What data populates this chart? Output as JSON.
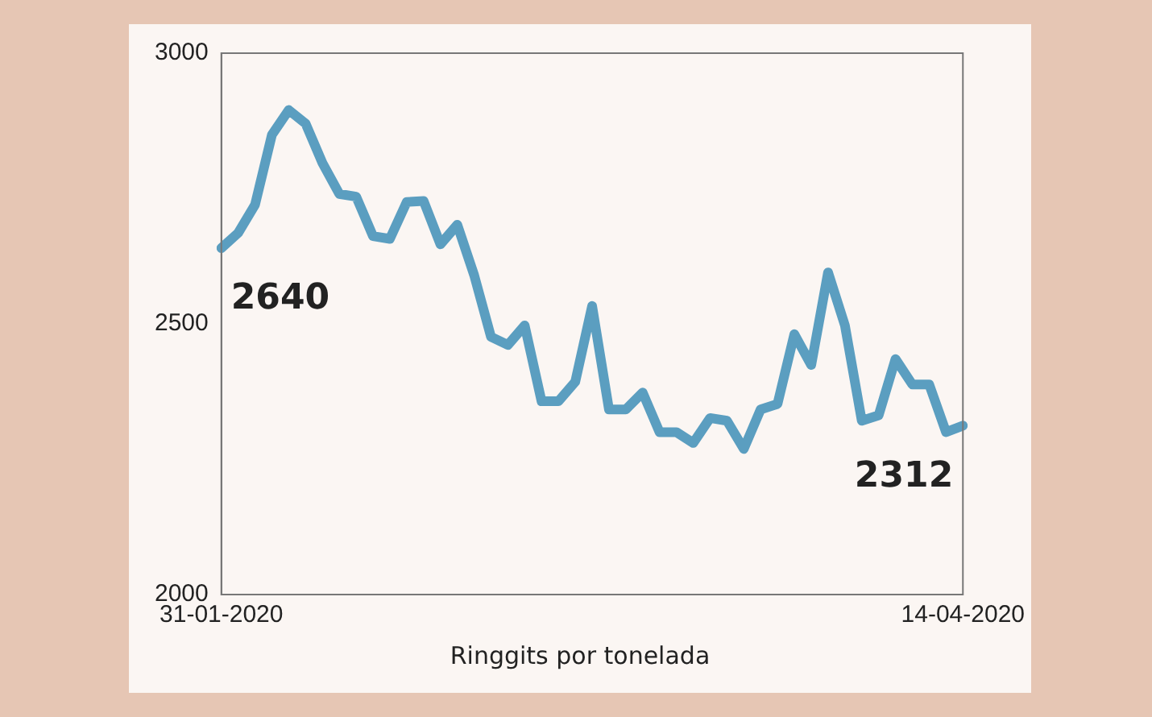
{
  "chart_data": {
    "type": "line",
    "xlabel": "Ringgits por tonelada",
    "categories": [
      "31-01-2020",
      null,
      null,
      null,
      null,
      null,
      null,
      null,
      null,
      null,
      null,
      null,
      null,
      null,
      null,
      null,
      null,
      null,
      null,
      null,
      null,
      null,
      null,
      null,
      null,
      null,
      null,
      null,
      null,
      null,
      null,
      null,
      null,
      null,
      null,
      null,
      null,
      null,
      null,
      null,
      null,
      null,
      null,
      null,
      "14-04-2020"
    ],
    "series": [
      {
        "color": "#5b9ec0",
        "values": [
          2640,
          2668,
          2720,
          2849,
          2895,
          2870,
          2797,
          2740,
          2735,
          2662,
          2657,
          2725,
          2727,
          2647,
          2683,
          2590,
          2476,
          2461,
          2497,
          2357,
          2357,
          2393,
          2533,
          2342,
          2342,
          2373,
          2300,
          2300,
          2280,
          2326,
          2321,
          2269,
          2342,
          2352,
          2481,
          2424,
          2595,
          2497,
          2321,
          2331,
          2435,
          2388,
          2388,
          2300,
          2312
        ]
      }
    ],
    "ylim": [
      2000,
      3000
    ],
    "yticks": [
      2000,
      2500,
      3000
    ],
    "grid": false,
    "legend": false,
    "marker": "none",
    "line_style": "solid",
    "annotations": [
      {
        "text": "2640",
        "x": "31-01-2020",
        "y": 2640
      },
      {
        "text": "2312",
        "x": "14-04-2020",
        "y": 2312
      }
    ]
  }
}
